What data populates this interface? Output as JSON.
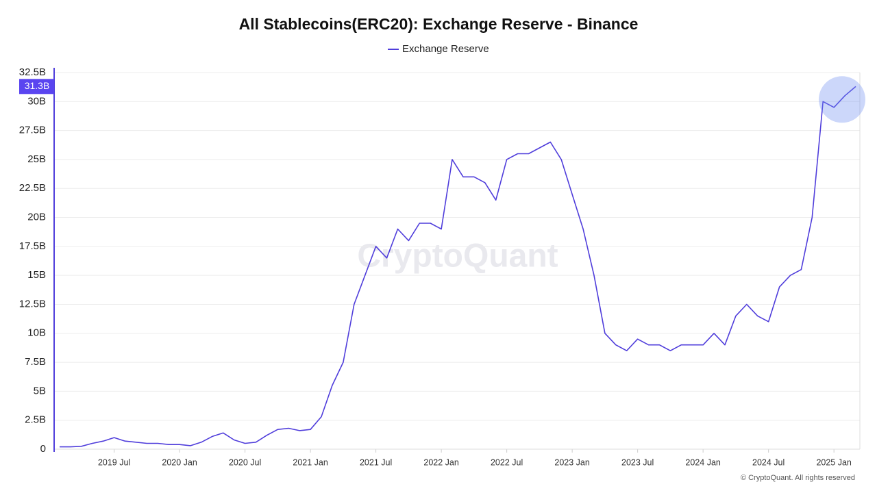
{
  "chart_data": {
    "type": "line",
    "title": "All Stablecoins(ERC20): Exchange Reserve - Binance",
    "watermark": "CryptoQuant",
    "footer": "© CryptoQuant. All rights reserved",
    "x": [
      "2019-02",
      "2019-03",
      "2019-04",
      "2019-05",
      "2019-06",
      "2019-07",
      "2019-08",
      "2019-09",
      "2019-10",
      "2019-11",
      "2019-12",
      "2020-01",
      "2020-02",
      "2020-03",
      "2020-04",
      "2020-05",
      "2020-06",
      "2020-07",
      "2020-08",
      "2020-09",
      "2020-10",
      "2020-11",
      "2020-12",
      "2021-01",
      "2021-02",
      "2021-03",
      "2021-04",
      "2021-05",
      "2021-06",
      "2021-07",
      "2021-08",
      "2021-09",
      "2021-10",
      "2021-11",
      "2021-12",
      "2022-01",
      "2022-02",
      "2022-03",
      "2022-04",
      "2022-05",
      "2022-06",
      "2022-07",
      "2022-08",
      "2022-09",
      "2022-10",
      "2022-11",
      "2022-12",
      "2023-01",
      "2023-02",
      "2023-03",
      "2023-04",
      "2023-05",
      "2023-06",
      "2023-07",
      "2023-08",
      "2023-09",
      "2023-10",
      "2023-11",
      "2023-12",
      "2024-01",
      "2024-02",
      "2024-03",
      "2024-04",
      "2024-05",
      "2024-06",
      "2024-07",
      "2024-08",
      "2024-09",
      "2024-10",
      "2024-11",
      "2024-12",
      "2025-01",
      "2025-02",
      "2025-03"
    ],
    "series": [
      {
        "name": "Exchange Reserve",
        "color": "#4f3ddb",
        "values": [
          0.2,
          0.2,
          0.25,
          0.5,
          0.7,
          1.0,
          0.7,
          0.6,
          0.5,
          0.5,
          0.4,
          0.4,
          0.3,
          0.6,
          1.1,
          1.4,
          0.8,
          0.5,
          0.6,
          1.2,
          1.7,
          1.8,
          1.6,
          1.7,
          2.8,
          5.5,
          7.5,
          12.5,
          15,
          17.5,
          16.5,
          19,
          18,
          19.5,
          19.5,
          19,
          25,
          23.5,
          23.5,
          23,
          21.5,
          25,
          25.5,
          25.5,
          26,
          26.5,
          25,
          22,
          19,
          15,
          10,
          9,
          8.5,
          9.5,
          9,
          9,
          8.5,
          9,
          9,
          9,
          10,
          9,
          11.5,
          12.5,
          11.5,
          11,
          14,
          15,
          15.5,
          20,
          30,
          29.5,
          30.5,
          31.3
        ]
      }
    ],
    "current_value": {
      "value": 31.3,
      "label": "31.3B"
    },
    "xlim": [
      "2019-02",
      "2025-03"
    ],
    "xticks": [
      {
        "value": "2019-07",
        "label": "2019 Jul"
      },
      {
        "value": "2020-01",
        "label": "2020 Jan"
      },
      {
        "value": "2020-07",
        "label": "2020 Jul"
      },
      {
        "value": "2021-01",
        "label": "2021 Jan"
      },
      {
        "value": "2021-07",
        "label": "2021 Jul"
      },
      {
        "value": "2022-01",
        "label": "2022 Jan"
      },
      {
        "value": "2022-07",
        "label": "2022 Jul"
      },
      {
        "value": "2023-01",
        "label": "2023 Jan"
      },
      {
        "value": "2023-07",
        "label": "2023 Jul"
      },
      {
        "value": "2024-01",
        "label": "2024 Jan"
      },
      {
        "value": "2024-07",
        "label": "2024 Jul"
      },
      {
        "value": "2025-01",
        "label": "2025 Jan"
      }
    ],
    "ylim": [
      0,
      32.5
    ],
    "yticks": [
      0,
      {
        "value": 2.5,
        "label": "2.5B"
      },
      {
        "value": 5,
        "label": "5B"
      },
      {
        "value": 7.5,
        "label": "7.5B"
      },
      {
        "value": 10,
        "label": "10B"
      },
      {
        "value": 12.5,
        "label": "12.5B"
      },
      {
        "value": 15,
        "label": "15B"
      },
      {
        "value": 17.5,
        "label": "17.5B"
      },
      {
        "value": 20,
        "label": "20B"
      },
      {
        "value": 22.5,
        "label": "22.5B"
      },
      {
        "value": 25,
        "label": "25B"
      },
      {
        "value": 27.5,
        "label": "27.5B"
      },
      {
        "value": 30,
        "label": "30B"
      },
      {
        "value": 32.5,
        "label": "32.5B"
      }
    ],
    "grid": true
  }
}
